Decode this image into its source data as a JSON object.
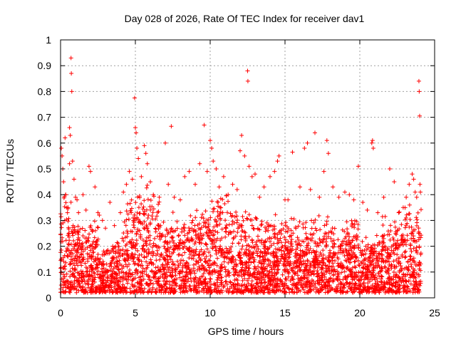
{
  "chart_data": {
    "type": "scatter",
    "title": "Day 028 of 2026, Rate Of TEC Index for receiver dav1",
    "xlabel": "GPS time / hours",
    "ylabel": "ROTI / TECUs",
    "xlim": [
      0,
      25
    ],
    "ylim": [
      0,
      1
    ],
    "xticks": [
      0,
      5,
      10,
      15,
      20,
      25
    ],
    "yticks": [
      0,
      0.1,
      0.2,
      0.3,
      0.4,
      0.5,
      0.6,
      0.7,
      0.8,
      0.9,
      1
    ],
    "ytick_labels": [
      "0",
      "0.1",
      "0.2",
      "0.3",
      "0.4",
      "0.5",
      "0.6",
      "0.7",
      "0.8",
      "0.9",
      "1"
    ],
    "xtick_labels": [
      "0",
      "5",
      "10",
      "15",
      "20",
      "25"
    ],
    "grid": true,
    "marker": "+",
    "color": "#ff0000",
    "series": [
      {
        "points": [
          [
            0.05,
            0.58
          ],
          [
            0.1,
            0.55
          ],
          [
            0.15,
            0.5
          ],
          [
            0.2,
            0.45
          ],
          [
            0.3,
            0.62
          ],
          [
            0.35,
            0.4
          ],
          [
            0.5,
            0.35
          ],
          [
            0.6,
            0.52
          ],
          [
            0.7,
            0.93
          ],
          [
            0.72,
            0.87
          ],
          [
            0.75,
            0.8
          ],
          [
            0.6,
            0.66
          ],
          [
            0.65,
            0.63
          ],
          [
            0.8,
            0.53
          ],
          [
            0.9,
            0.46
          ],
          [
            1.0,
            0.39
          ],
          [
            1.1,
            0.38
          ],
          [
            1.2,
            0.33
          ],
          [
            1.5,
            0.4
          ],
          [
            1.7,
            0.34
          ],
          [
            1.9,
            0.51
          ],
          [
            2.0,
            0.49
          ],
          [
            2.3,
            0.43
          ],
          [
            2.5,
            0.33
          ],
          [
            2.8,
            0.3
          ],
          [
            3.0,
            0.27
          ],
          [
            3.3,
            0.37
          ],
          [
            3.6,
            0.28
          ],
          [
            4.0,
            0.33
          ],
          [
            4.2,
            0.41
          ],
          [
            4.4,
            0.44
          ],
          [
            4.6,
            0.49
          ],
          [
            4.8,
            0.46
          ],
          [
            4.95,
            0.775
          ],
          [
            5.0,
            0.66
          ],
          [
            5.05,
            0.64
          ],
          [
            5.1,
            0.58
          ],
          [
            5.2,
            0.54
          ],
          [
            5.4,
            0.47
          ],
          [
            5.6,
            0.59
          ],
          [
            5.7,
            0.56
          ],
          [
            5.8,
            0.52
          ],
          [
            6.0,
            0.45
          ],
          [
            6.2,
            0.4
          ],
          [
            6.6,
            0.39
          ],
          [
            7.0,
            0.6
          ],
          [
            7.2,
            0.44
          ],
          [
            7.4,
            0.665
          ],
          [
            7.6,
            0.39
          ],
          [
            8.0,
            0.38
          ],
          [
            8.3,
            0.47
          ],
          [
            8.6,
            0.49
          ],
          [
            9.0,
            0.44
          ],
          [
            9.3,
            0.52
          ],
          [
            9.6,
            0.67
          ],
          [
            9.8,
            0.49
          ],
          [
            10.0,
            0.61
          ],
          [
            10.1,
            0.58
          ],
          [
            10.2,
            0.53
          ],
          [
            10.4,
            0.5
          ],
          [
            10.6,
            0.43
          ],
          [
            10.9,
            0.47
          ],
          [
            11.2,
            0.4
          ],
          [
            11.5,
            0.44
          ],
          [
            11.8,
            0.42
          ],
          [
            12.0,
            0.57
          ],
          [
            12.1,
            0.63
          ],
          [
            12.3,
            0.55
          ],
          [
            12.5,
            0.88
          ],
          [
            12.52,
            0.84
          ],
          [
            12.6,
            0.51
          ],
          [
            12.8,
            0.47
          ],
          [
            13.0,
            0.48
          ],
          [
            13.3,
            0.39
          ],
          [
            13.6,
            0.43
          ],
          [
            14.0,
            0.47
          ],
          [
            14.3,
            0.49
          ],
          [
            14.5,
            0.53
          ],
          [
            14.6,
            0.55
          ],
          [
            15.0,
            0.38
          ],
          [
            15.2,
            0.38
          ],
          [
            15.5,
            0.565
          ],
          [
            16.0,
            0.43
          ],
          [
            16.3,
            0.58
          ],
          [
            16.5,
            0.6
          ],
          [
            16.7,
            0.42
          ],
          [
            17.0,
            0.64
          ],
          [
            17.3,
            0.39
          ],
          [
            17.6,
            0.49
          ],
          [
            17.8,
            0.61
          ],
          [
            17.9,
            0.56
          ],
          [
            18.2,
            0.43
          ],
          [
            18.6,
            0.39
          ],
          [
            19.0,
            0.41
          ],
          [
            19.3,
            0.4
          ],
          [
            19.6,
            0.38
          ],
          [
            19.9,
            0.51
          ],
          [
            20.2,
            0.37
          ],
          [
            20.5,
            0.34
          ],
          [
            20.8,
            0.6
          ],
          [
            20.85,
            0.61
          ],
          [
            20.9,
            0.58
          ],
          [
            21.2,
            0.33
          ],
          [
            21.6,
            0.39
          ],
          [
            22.0,
            0.5
          ],
          [
            22.3,
            0.45
          ],
          [
            22.6,
            0.33
          ],
          [
            22.9,
            0.35
          ],
          [
            23.1,
            0.39
          ],
          [
            23.3,
            0.44
          ],
          [
            23.5,
            0.48
          ],
          [
            23.6,
            0.46
          ],
          [
            23.7,
            0.41
          ],
          [
            23.8,
            0.39
          ],
          [
            23.95,
            0.84
          ],
          [
            23.97,
            0.8
          ],
          [
            24.0,
            0.705
          ],
          [
            24.02,
            0.44
          ],
          [
            24.05,
            0.41
          ]
        ]
      }
    ]
  }
}
